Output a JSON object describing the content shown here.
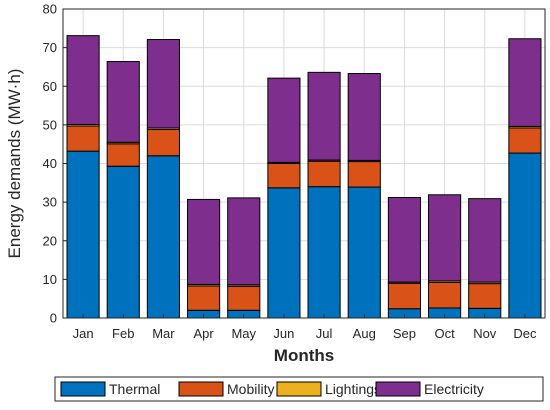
{
  "chart_data": {
    "type": "bar",
    "stacked": true,
    "categories": [
      "Jan",
      "Feb",
      "Mar",
      "Apr",
      "May",
      "Jun",
      "Jul",
      "Aug",
      "Sep",
      "Oct",
      "Nov",
      "Dec"
    ],
    "series": [
      {
        "name": "Thermal",
        "color": "#0072BD",
        "values": [
          43.2,
          39.3,
          42.0,
          2.0,
          2.0,
          33.7,
          34.0,
          33.9,
          2.4,
          2.6,
          2.5,
          42.7
        ]
      },
      {
        "name": "Mobility",
        "color": "#D95319",
        "values": [
          6.5,
          5.8,
          6.8,
          6.3,
          6.2,
          6.3,
          6.6,
          6.6,
          6.6,
          6.6,
          6.4,
          6.5
        ]
      },
      {
        "name": "Lightings",
        "color": "#EDB120",
        "values": [
          0.4,
          0.4,
          0.4,
          0.4,
          0.4,
          0.3,
          0.3,
          0.3,
          0.3,
          0.4,
          0.4,
          0.4
        ]
      },
      {
        "name": "Electricity",
        "color": "#7E2F8E",
        "values": [
          23.0,
          20.9,
          22.9,
          22.0,
          22.5,
          21.8,
          22.7,
          22.5,
          21.9,
          22.3,
          21.6,
          22.7
        ]
      }
    ],
    "xlabel": "Months",
    "ylabel": "Energy demands (MW·h)",
    "ylim": [
      0,
      80
    ],
    "yticks": [
      0,
      10,
      20,
      30,
      40,
      50,
      60,
      70,
      80
    ],
    "grid": true,
    "legend_position": "bottom"
  }
}
